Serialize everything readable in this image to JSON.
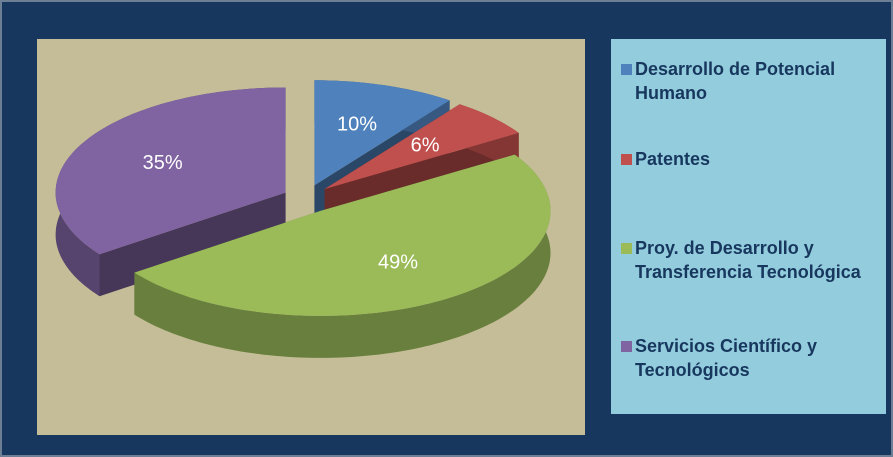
{
  "chart_data": {
    "type": "pie",
    "categories": [
      "Desarrollo de Potencial Humano",
      "Patentes",
      "Proy. de Desarrollo y Transferencia Tecnológica",
      "Servicios Científico y Tecnológicos"
    ],
    "values": [
      10,
      6,
      49,
      35
    ],
    "value_labels": [
      "10%",
      "6%",
      "49%",
      "35%"
    ],
    "colors": [
      "#4f81bd",
      "#c0504d",
      "#9bbb59",
      "#8064a2"
    ],
    "legend": "right"
  }
}
